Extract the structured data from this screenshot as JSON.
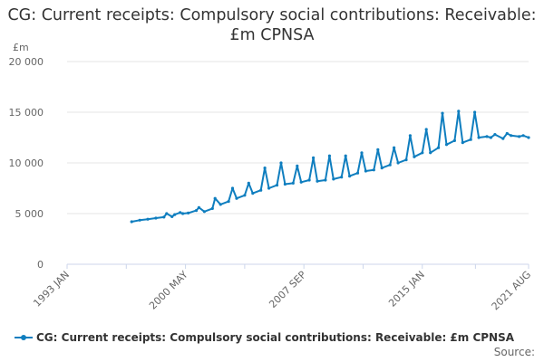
{
  "title": "CG: Current receipts: Compulsory social contributions: Receivable: £m CPNSA",
  "colors": {
    "series": "#0f7ebf",
    "grid": "#e6e6e6",
    "axis": "#ccd6eb",
    "text": "#666666"
  },
  "legend_label": "CG: Current receipts: Compulsory social contributions: Receivable: £m CPNSA",
  "source_label": "Source:",
  "chart_data": {
    "type": "line",
    "title": "CG: Current receipts: Compulsory social contributions: Receivable: £m CPNSA",
    "ylabel": "£m",
    "ylim": [
      0,
      20000
    ],
    "y_ticks": [
      0,
      5000,
      10000,
      15000,
      20000
    ],
    "y_tick_labels": [
      "0",
      "5 000",
      "10 000",
      "15 000",
      "20 000"
    ],
    "xlim": [
      "1993-01",
      "2021-08"
    ],
    "x_ticks": [
      "1993-01",
      "2000-05",
      "2007-09",
      "2015-01",
      "2021-08"
    ],
    "x_tick_labels": [
      "1993 JAN",
      "2000 MAY",
      "2007 SEP",
      "2015 JAN",
      "2021 AUG"
    ],
    "grid": true,
    "legend": "bottom",
    "series": [
      {
        "name": "CG: Current receipts: Compulsory social contributions: Receivable: £m CPNSA",
        "color": "#0f7ebf",
        "x": [
          "1997-01",
          "1997-07",
          "1998-01",
          "1998-07",
          "1999-01",
          "1999-03",
          "1999-07",
          "1999-09",
          "2000-01",
          "2000-03",
          "2000-07",
          "2001-01",
          "2001-03",
          "2001-07",
          "2002-01",
          "2002-03",
          "2002-07",
          "2003-01",
          "2003-04",
          "2003-07",
          "2004-01",
          "2004-04",
          "2004-07",
          "2005-01",
          "2005-04",
          "2005-07",
          "2006-01",
          "2006-04",
          "2006-07",
          "2007-01",
          "2007-04",
          "2007-07",
          "2008-01",
          "2008-04",
          "2008-07",
          "2009-01",
          "2009-04",
          "2009-07",
          "2010-01",
          "2010-04",
          "2010-07",
          "2011-01",
          "2011-04",
          "2011-07",
          "2012-01",
          "2012-04",
          "2012-07",
          "2013-01",
          "2013-04",
          "2013-07",
          "2014-01",
          "2014-04",
          "2014-07",
          "2015-01",
          "2015-04",
          "2015-07",
          "2016-01",
          "2016-04",
          "2016-07",
          "2017-01",
          "2017-04",
          "2017-07",
          "2018-01",
          "2018-04",
          "2018-07",
          "2019-01",
          "2019-04",
          "2019-07",
          "2020-01",
          "2020-04",
          "2020-07",
          "2021-01",
          "2021-04",
          "2021-08"
        ],
        "values": [
          4200,
          4350,
          4450,
          4550,
          4650,
          5000,
          4700,
          4900,
          5100,
          5000,
          5050,
          5300,
          5600,
          5200,
          5500,
          6500,
          5900,
          6200,
          7500,
          6500,
          6800,
          8000,
          7000,
          7300,
          9500,
          7500,
          7800,
          10000,
          7900,
          8000,
          9700,
          8100,
          8300,
          10500,
          8200,
          8300,
          10700,
          8400,
          8600,
          10700,
          8700,
          9000,
          11000,
          9200,
          9300,
          11300,
          9500,
          9800,
          11500,
          10000,
          10300,
          12700,
          10600,
          11000,
          13300,
          11000,
          11500,
          14900,
          11800,
          12200,
          15100,
          12000,
          12300,
          15000,
          12500,
          12600,
          12500,
          12800,
          12400,
          12900,
          12700,
          12600,
          12700,
          12500
        ]
      }
    ]
  }
}
